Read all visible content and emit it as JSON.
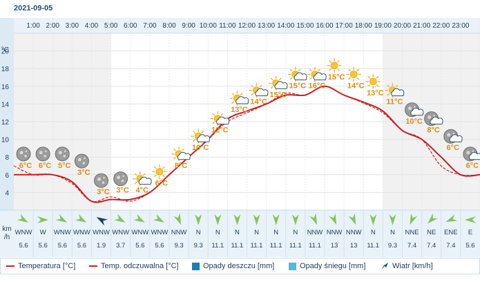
{
  "date": "2021-09-05",
  "chart_data": {
    "type": "line",
    "hours": [
      "1:00",
      "2:00",
      "3:00",
      "4:00",
      "5:00",
      "6:00",
      "7:00",
      "8:00",
      "9:00",
      "10:00",
      "11:00",
      "12:00",
      "13:00",
      "14:00",
      "15:00",
      "16:00",
      "17:00",
      "18:00",
      "19:00",
      "20:00",
      "21:00",
      "22:00",
      "23:00"
    ],
    "temperature_labels": [
      "6°C",
      "6°C",
      "5°C",
      "3°C",
      "3°C",
      "3°C",
      "4°C",
      "6°C",
      "8°C",
      "10°C",
      "12°C",
      "13°C",
      "14°C",
      "15°C",
      "15°C",
      "16°C",
      "15°C",
      "14°C",
      "13°C",
      "11°C",
      "10°C",
      "8°C",
      "6°C",
      "6°C"
    ],
    "label_icons": [
      "moon",
      "moon",
      "moon",
      "moon",
      "moon",
      "moon",
      "sun-cloud",
      "sun",
      "sun-cloud",
      "sun-cloud",
      "sun-cloud",
      "sun-cloud",
      "sun-cloud",
      "sun-cloud",
      "sun-cloud",
      "sun-cloud",
      "sun",
      "sun",
      "sun",
      "sun-cloud",
      "moon-cloud",
      "moon-cloud",
      "moon-cloud",
      "moon-cloud"
    ],
    "series": [
      {
        "name": "Temperatura [°C]",
        "color": "#cc1f1f",
        "style": "solid",
        "x": [
          0,
          1,
          2,
          3,
          4,
          5,
          6,
          7,
          8,
          9,
          10,
          11,
          12,
          13,
          14,
          15,
          16,
          17,
          18,
          19,
          20,
          21,
          22,
          23,
          24
        ],
        "values": [
          6,
          6,
          6,
          5.2,
          3,
          3.2,
          3.2,
          4,
          6,
          8,
          10,
          12.3,
          13.2,
          14,
          15,
          15,
          16,
          15,
          14.2,
          13.2,
          11,
          10,
          8,
          6,
          6
        ]
      },
      {
        "name": "Temp. odczuwalna [°C]",
        "color": "#cc1f1f",
        "style": "dashed",
        "x": [
          0,
          1,
          2,
          3,
          4,
          5,
          6,
          7,
          8,
          9,
          10,
          11,
          12,
          13,
          14,
          15,
          16,
          17,
          18,
          19,
          20,
          21,
          22,
          23,
          24
        ],
        "values": [
          7,
          6,
          6,
          5,
          3,
          3.5,
          3,
          4,
          6,
          8,
          10,
          12,
          13,
          14,
          15.2,
          15,
          16,
          15,
          14.1,
          13,
          11,
          10,
          7,
          6,
          6
        ]
      }
    ],
    "ylim": [
      2,
      22
    ],
    "yticks": [
      4,
      6,
      8,
      10,
      12,
      14,
      16,
      18,
      20
    ],
    "ylabel": "°C",
    "wind_unit_line1": "km",
    "wind_unit_line2": "/h",
    "wind": {
      "directions": [
        "WNW",
        "W",
        "WNW",
        "WNW",
        "WNW",
        "WNW",
        "WNW",
        "WNW",
        "NNW",
        "N",
        "N",
        "N",
        "N",
        "N",
        "N",
        "NNW",
        "NNW",
        "NNW",
        "N",
        "N",
        "NNE",
        "NE",
        "ENE",
        "E"
      ],
      "speeds": [
        "5.6",
        "5.6",
        "5.6",
        "5.6",
        "1.9",
        "3.7",
        "5.6",
        "5.6",
        "9.3",
        "9.3",
        "11.1",
        "11.1",
        "11.1",
        "11.1",
        "11.1",
        "11.1",
        "13",
        "13",
        "11.1",
        "9.3",
        "7.4",
        "7.4",
        "7.4",
        "5.6"
      ],
      "rotations": [
        120,
        90,
        120,
        120,
        300,
        120,
        120,
        120,
        157,
        180,
        180,
        180,
        180,
        180,
        180,
        157,
        157,
        157,
        180,
        180,
        202,
        225,
        247,
        270
      ]
    },
    "night_ranges": [
      [
        0,
        5
      ],
      [
        19,
        24
      ]
    ],
    "legend": {
      "position": "bottom",
      "items": [
        {
          "label": "Temperatura [°C]",
          "kind": "line",
          "color": "#cc1f1f"
        },
        {
          "label": "Temp. odczuwalna [°C]",
          "kind": "line",
          "color": "#cc1f1f"
        },
        {
          "label": "Opady deszczu [mm]",
          "kind": "box",
          "color": "#1a7fae"
        },
        {
          "label": "Opady śniegu [mm]",
          "kind": "box",
          "color": "#55b7d9"
        },
        {
          "label": "Wiatr [km/h]",
          "kind": "arrow",
          "color": "#1f4e79"
        }
      ]
    }
  }
}
